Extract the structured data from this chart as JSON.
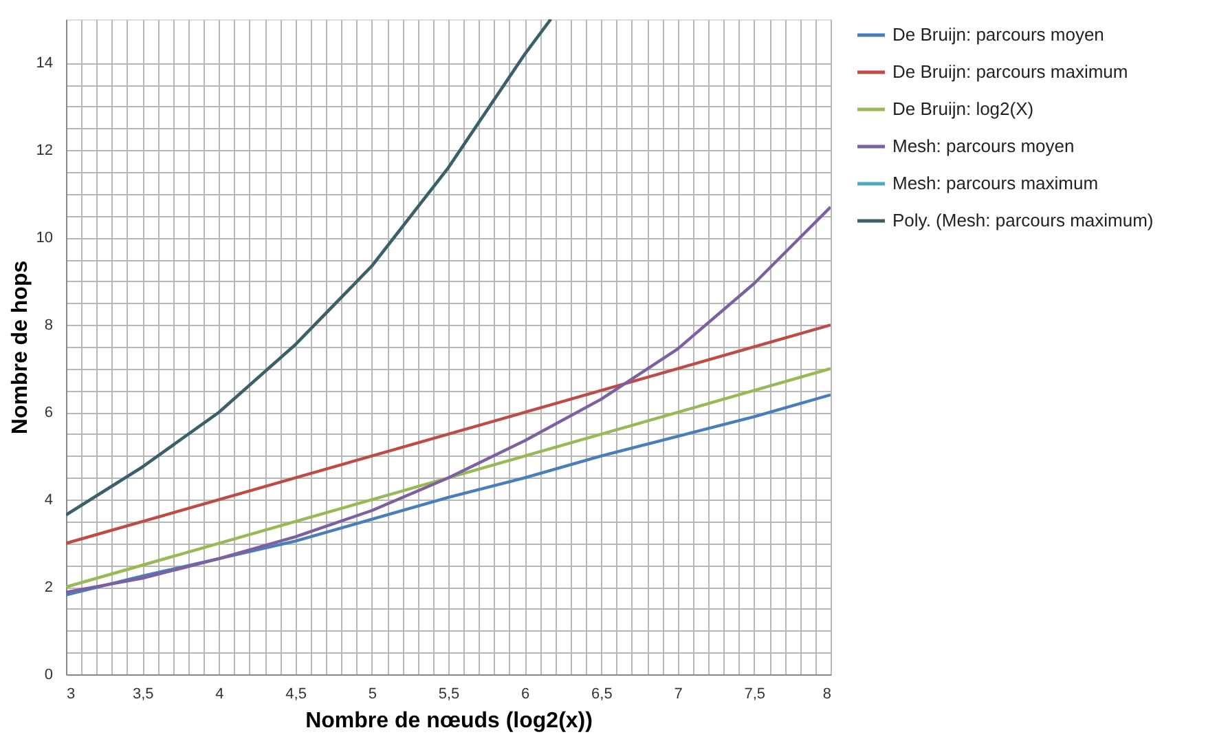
{
  "chart_data": {
    "type": "line",
    "xlabel": "Nombre de nœuds (log2(x))",
    "ylabel": "Nombre de hops",
    "xlim": [
      3,
      8
    ],
    "ylim": [
      0,
      15
    ],
    "xticks": [
      3,
      {
        "value": 3.5,
        "label": "3,5"
      },
      4,
      {
        "value": 4.5,
        "label": "4,5"
      },
      5,
      {
        "value": 5.5,
        "label": "5,5"
      },
      6,
      {
        "value": 6.5,
        "label": "6,5"
      },
      7,
      {
        "value": 7.5,
        "label": "7,5"
      },
      8
    ],
    "yticks": [
      0,
      2,
      4,
      6,
      8,
      10,
      12,
      14
    ],
    "grid": true,
    "legend": "right",
    "marker": "none",
    "line_style": "solid",
    "series": [
      {
        "name": "De Bruijn: parcours moyen",
        "color": "#4a7ebb",
        "x": [
          3,
          3.5,
          4,
          4.5,
          5,
          5.5,
          6,
          6.5,
          7,
          7.5,
          8
        ],
        "values": [
          1.82,
          2.25,
          2.65,
          3.05,
          3.55,
          4.05,
          4.5,
          5.0,
          5.45,
          5.9,
          6.4
        ]
      },
      {
        "name": "De Bruijn: parcours maximum",
        "color": "#be4b48",
        "x": [
          3,
          8
        ],
        "values": [
          3,
          8
        ]
      },
      {
        "name": "De Bruijn: log2(X)",
        "color": "#98b954",
        "x": [
          3,
          8
        ],
        "values": [
          2,
          7
        ]
      },
      {
        "name": "Mesh: parcours moyen",
        "color": "#7d60a0",
        "x": [
          3,
          3.5,
          4,
          4.5,
          5,
          5.5,
          6,
          6.5,
          7,
          7.5,
          8
        ],
        "values": [
          1.88,
          2.2,
          2.65,
          3.15,
          3.75,
          4.5,
          5.35,
          6.3,
          7.45,
          8.95,
          10.7
        ]
      },
      {
        "name": "Mesh: parcours maximum",
        "color": "#46aac5",
        "x": [
          3,
          3.5,
          4,
          4.5,
          5,
          5.5,
          6,
          6.17
        ],
        "values": [
          3.65,
          4.75,
          6.0,
          7.55,
          9.35,
          11.6,
          14.2,
          15
        ]
      },
      {
        "name": "Poly. (Mesh: parcours maximum)",
        "color": "#3f5f66",
        "x": [
          3,
          3.5,
          4,
          4.5,
          5,
          5.5,
          6,
          6.17
        ],
        "values": [
          3.65,
          4.75,
          6.0,
          7.55,
          9.35,
          11.6,
          14.2,
          15
        ]
      }
    ]
  }
}
